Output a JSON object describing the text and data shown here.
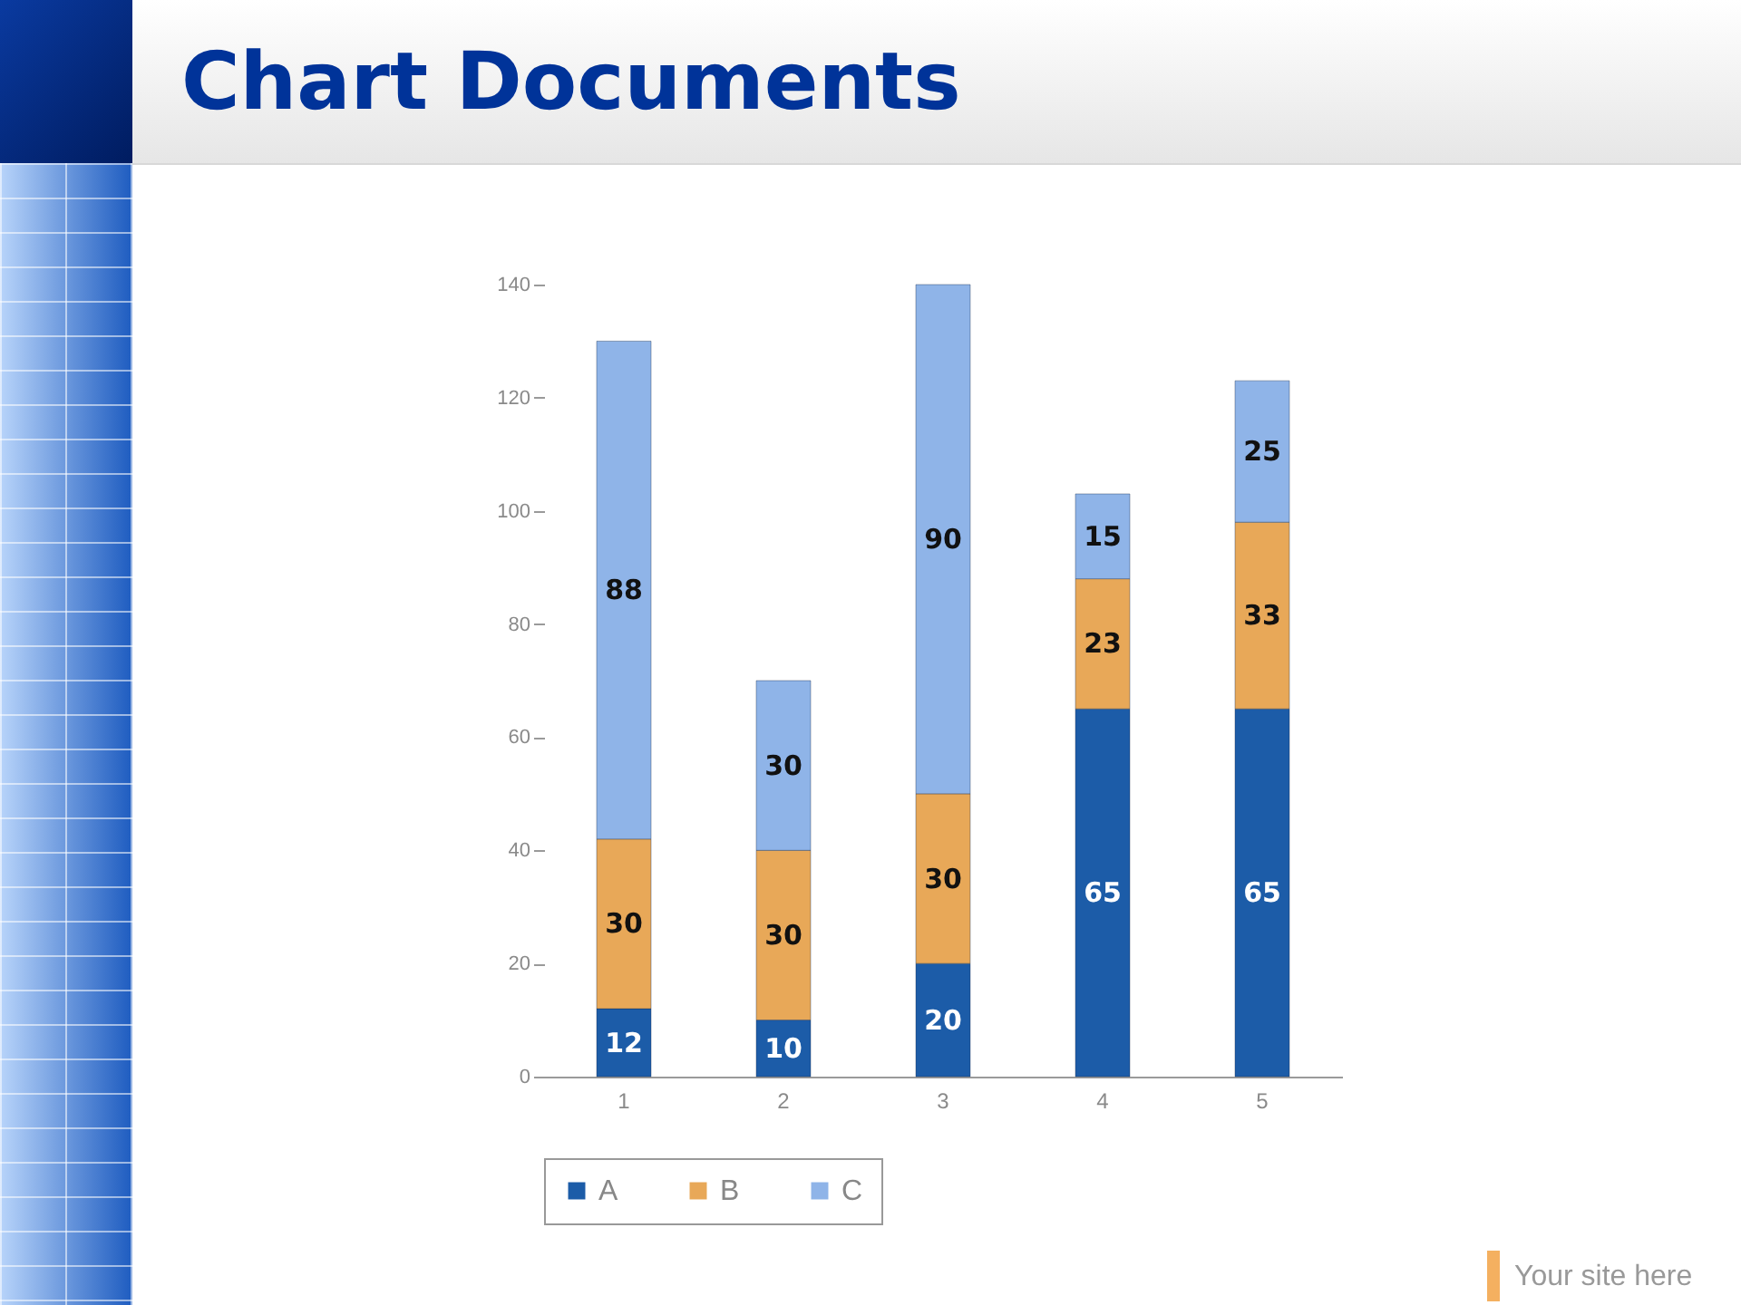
{
  "chart_data": {
    "type": "bar",
    "title": "Chart Documents",
    "categories": [
      "1",
      "2",
      "3",
      "4",
      "5"
    ],
    "series": [
      {
        "name": "A",
        "color": "#1c5ca8",
        "values": [
          12,
          10,
          20,
          65,
          65
        ]
      },
      {
        "name": "B",
        "color": "#e8a858",
        "values": [
          30,
          30,
          30,
          23,
          33
        ]
      },
      {
        "name": "C",
        "color": "#8fb4e8",
        "values": [
          88,
          30,
          90,
          15,
          25
        ]
      }
    ],
    "stacked": true,
    "data_labels": true,
    "ylim": [
      0,
      140
    ],
    "yticks": [
      0,
      20,
      40,
      60,
      80,
      100,
      120,
      140
    ],
    "legend": "bottom",
    "annotations": [
      "Your site here"
    ]
  }
}
